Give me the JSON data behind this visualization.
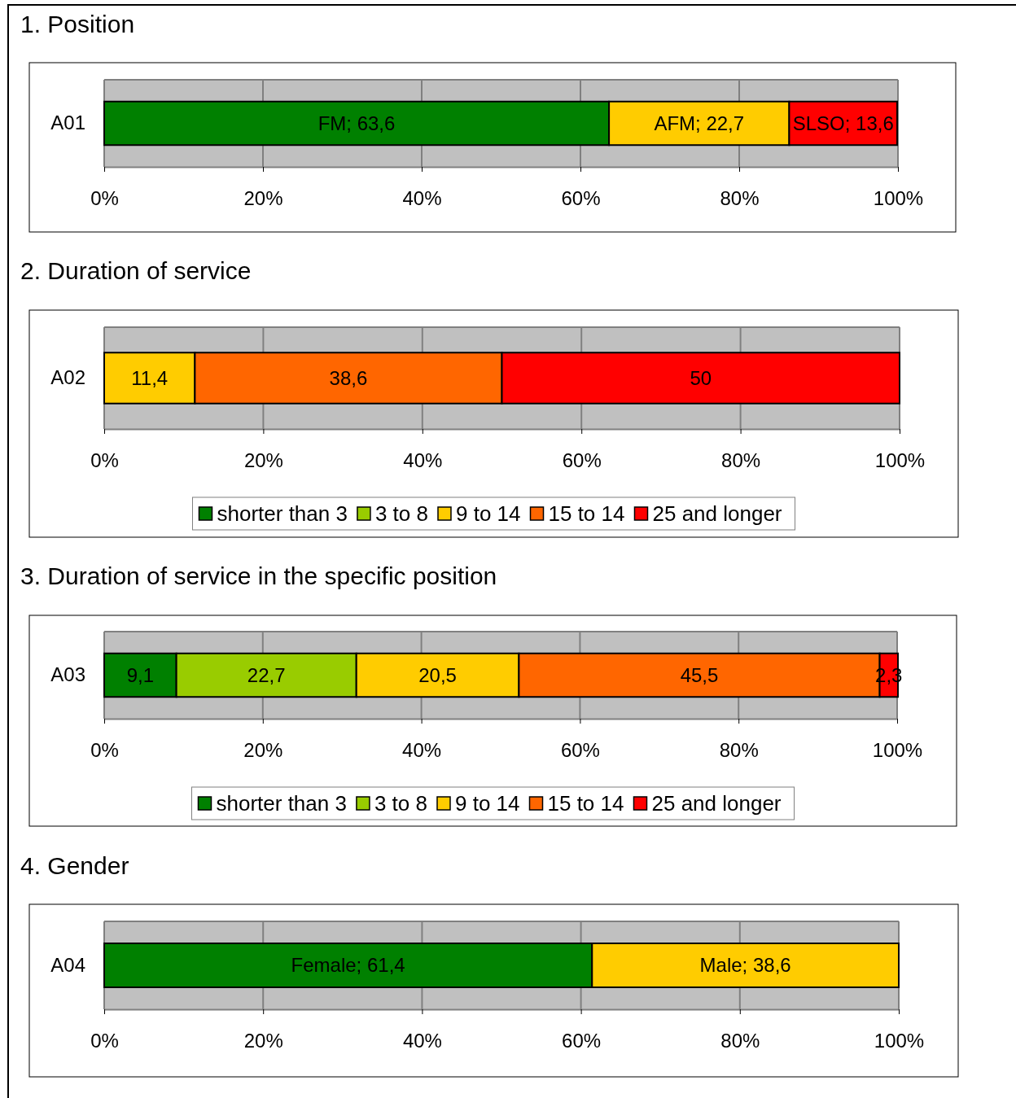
{
  "chart_data": [
    {
      "type": "bar",
      "title": "1. Position",
      "orientation": "horizontal",
      "stacked": true,
      "categories": [
        "A01"
      ],
      "xlim": [
        0,
        100
      ],
      "xticks": [
        {
          "value": 0,
          "label": "0%"
        },
        {
          "value": 20,
          "label": "20%"
        },
        {
          "value": 40,
          "label": "40%"
        },
        {
          "value": 60,
          "label": "60%"
        },
        {
          "value": 80,
          "label": "80%"
        },
        {
          "value": 100,
          "label": "100%"
        }
      ],
      "grid": "x",
      "legend": false,
      "series": [
        {
          "color": "#008000",
          "values": [
            63.6
          ],
          "value_labels": [
            "FM; 63,6"
          ]
        },
        {
          "color": "#ffcc00",
          "values": [
            22.7
          ],
          "value_labels": [
            "AFM; 22,7"
          ]
        },
        {
          "color": "#ff0000",
          "values": [
            13.6
          ],
          "value_labels": [
            "SLSO; 13,6"
          ]
        }
      ]
    },
    {
      "type": "bar",
      "title": "2. Duration of service",
      "orientation": "horizontal",
      "stacked": true,
      "categories": [
        "A02"
      ],
      "xlim": [
        0,
        100
      ],
      "xticks": [
        {
          "value": 0,
          "label": "0%"
        },
        {
          "value": 20,
          "label": "20%"
        },
        {
          "value": 40,
          "label": "40%"
        },
        {
          "value": 60,
          "label": "60%"
        },
        {
          "value": 80,
          "label": "80%"
        },
        {
          "value": 100,
          "label": "100%"
        }
      ],
      "grid": "x",
      "legend": "bottom",
      "series": [
        {
          "name": "shorter than 3",
          "color": "#008000",
          "values": [
            null
          ]
        },
        {
          "name": "3 to 8",
          "color": "#99cc00",
          "values": [
            null
          ]
        },
        {
          "name": "9 to 14",
          "color": "#ffcc00",
          "values": [
            11.4
          ],
          "value_labels": [
            "11,4"
          ]
        },
        {
          "name": "15 to 14",
          "color": "#ff6600",
          "values": [
            38.6
          ],
          "value_labels": [
            "38,6"
          ]
        },
        {
          "name": "25 and longer",
          "color": "#ff0000",
          "values": [
            50
          ],
          "value_labels": [
            "50"
          ]
        }
      ]
    },
    {
      "type": "bar",
      "title": "3. Duration of service in the specific position",
      "orientation": "horizontal",
      "stacked": true,
      "categories": [
        "A03"
      ],
      "xlim": [
        0,
        100
      ],
      "xticks": [
        {
          "value": 0,
          "label": "0%"
        },
        {
          "value": 20,
          "label": "20%"
        },
        {
          "value": 40,
          "label": "40%"
        },
        {
          "value": 60,
          "label": "60%"
        },
        {
          "value": 80,
          "label": "80%"
        },
        {
          "value": 100,
          "label": "100%"
        }
      ],
      "grid": "x",
      "legend": "bottom",
      "series": [
        {
          "name": "shorter than 3",
          "color": "#008000",
          "values": [
            9.1
          ],
          "value_labels": [
            "9,1"
          ]
        },
        {
          "name": "3 to 8",
          "color": "#99cc00",
          "values": [
            22.7
          ],
          "value_labels": [
            "22,7"
          ]
        },
        {
          "name": "9 to 14",
          "color": "#ffcc00",
          "values": [
            20.5
          ],
          "value_labels": [
            "20,5"
          ]
        },
        {
          "name": "15 to 14",
          "color": "#ff6600",
          "values": [
            45.5
          ],
          "value_labels": [
            "45,5"
          ]
        },
        {
          "name": "25 and longer",
          "color": "#ff0000",
          "values": [
            2.3
          ],
          "value_labels": [
            "2,3"
          ]
        }
      ]
    },
    {
      "type": "bar",
      "title": "4. Gender",
      "orientation": "horizontal",
      "stacked": true,
      "categories": [
        "A04"
      ],
      "xlim": [
        0,
        100
      ],
      "xticks": [
        {
          "value": 0,
          "label": "0%"
        },
        {
          "value": 20,
          "label": "20%"
        },
        {
          "value": 40,
          "label": "40%"
        },
        {
          "value": 60,
          "label": "60%"
        },
        {
          "value": 80,
          "label": "80%"
        },
        {
          "value": 100,
          "label": "100%"
        }
      ],
      "grid": "x",
      "legend": false,
      "series": [
        {
          "color": "#008000",
          "values": [
            61.4
          ],
          "value_labels": [
            "Female; 61,4"
          ]
        },
        {
          "color": "#ffcc00",
          "values": [
            38.6
          ],
          "value_labels": [
            "Male; 38,6"
          ]
        }
      ]
    }
  ]
}
